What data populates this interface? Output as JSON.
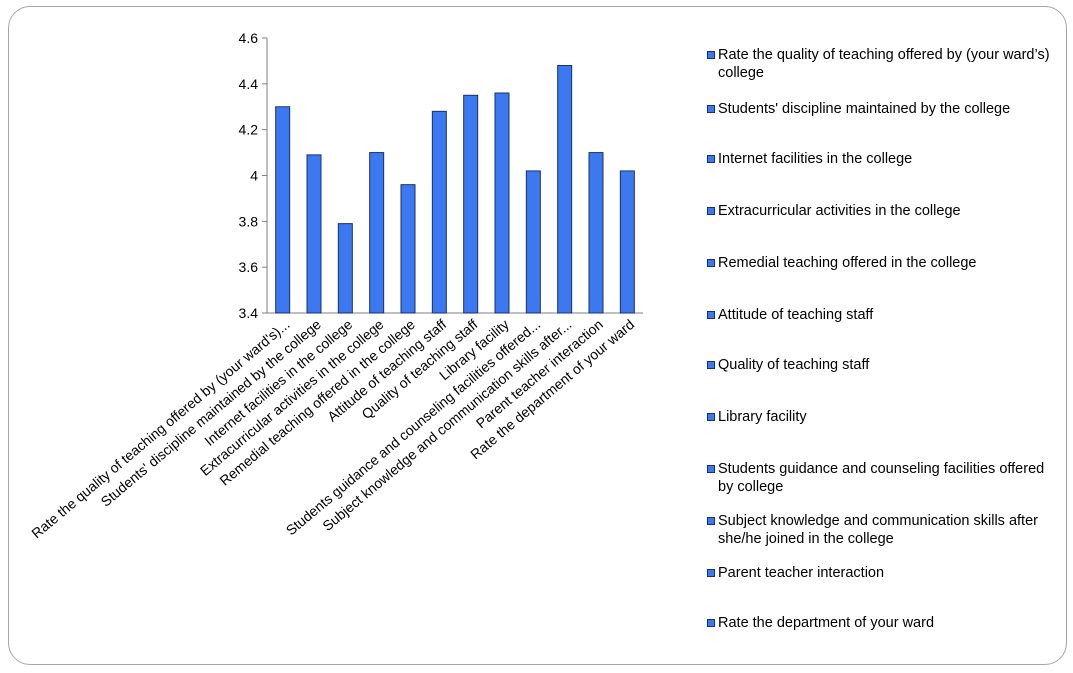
{
  "chart_data": {
    "type": "bar",
    "title": "",
    "xlabel": "",
    "ylabel": "",
    "ylim": [
      3.4,
      4.6
    ],
    "yticks": [
      3.4,
      3.6,
      3.8,
      4,
      4.2,
      4.4,
      4.6
    ],
    "grid": false,
    "legend_position": "right",
    "bar_color": "#3c78f0",
    "bar_border_color": "#1a2f6b",
    "categories": [
      "Rate the quality of teaching offered by (your ward's)...",
      "Students' discipline maintained by the college",
      "Internet facilities in the college",
      "Extracurricular activities in the college",
      "Remedial teaching offered in the college",
      "Attitude of teaching staff",
      "Quality of teaching staff",
      "Library facility",
      "Students guidance and counseling facilities offered...",
      "Subject knowledge and communication skills after...",
      "Parent teacher interaction",
      "Rate the department of your ward"
    ],
    "values": [
      4.3,
      4.09,
      3.79,
      4.1,
      3.96,
      4.28,
      4.35,
      4.36,
      4.02,
      4.48,
      4.1,
      4.02
    ],
    "legend": [
      "Rate the quality of teaching offered by (your ward’s) college",
      "Students' discipline maintained by the college",
      "Internet facilities in the college",
      "Extracurricular activities in the college",
      "Remedial teaching offered in the college",
      "Attitude of teaching staff",
      "Quality of teaching staff",
      "Library facility",
      "Students guidance and counseling facilities offered by college",
      "Subject knowledge and communication skills after she/he joined in the college",
      "Parent teacher interaction",
      "Rate the department of your ward"
    ]
  }
}
